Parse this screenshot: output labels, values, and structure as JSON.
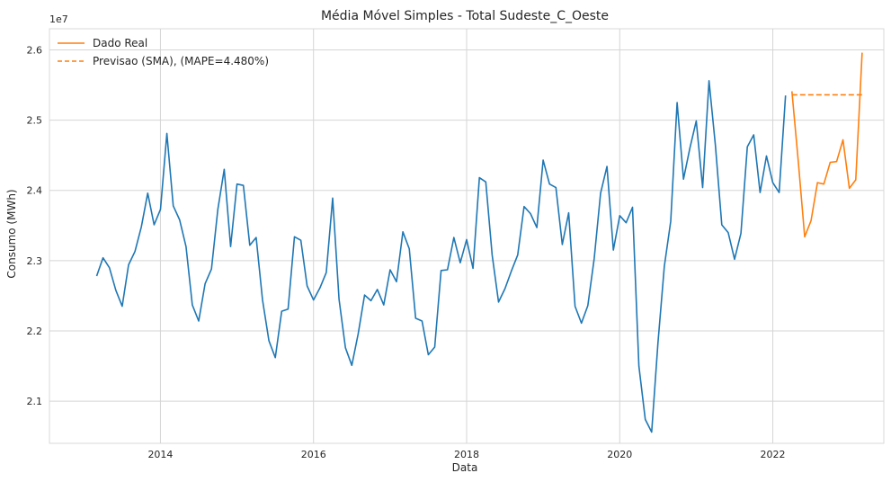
{
  "chart_data": {
    "type": "line",
    "title": "Média Móvel Simples - Total Sudeste_C_Oeste",
    "xlabel": "Data",
    "ylabel": "Consumo (MWh)",
    "y_offset_label": "1e7",
    "grid": true,
    "legend_placement": "top-left",
    "xlim": [
      2012.55,
      2023.45
    ],
    "ylim": [
      2.04,
      2.63
    ],
    "x_ticks": [
      {
        "value": 2014,
        "label": "2014"
      },
      {
        "value": 2016,
        "label": "2016"
      },
      {
        "value": 2018,
        "label": "2018"
      },
      {
        "value": 2020,
        "label": "2020"
      },
      {
        "value": 2022,
        "label": "2022"
      }
    ],
    "y_ticks": [
      {
        "value": 2.1,
        "label": "2.1"
      },
      {
        "value": 2.2,
        "label": "2.2"
      },
      {
        "value": 2.3,
        "label": "2.3"
      },
      {
        "value": 2.4,
        "label": "2.4"
      },
      {
        "value": 2.5,
        "label": "2.5"
      },
      {
        "value": 2.6,
        "label": "2.6"
      }
    ],
    "series": [
      {
        "name": "history",
        "color": "#1f77b4",
        "style": "solid",
        "x_start": 2013.167,
        "x_step": 0.08333,
        "values": [
          2.278,
          2.304,
          2.29,
          2.258,
          2.235,
          2.294,
          2.313,
          2.348,
          2.396,
          2.351,
          2.373,
          2.481,
          2.378,
          2.358,
          2.32,
          2.237,
          2.214,
          2.267,
          2.288,
          2.373,
          2.43,
          2.32,
          2.409,
          2.407,
          2.322,
          2.333,
          2.244,
          2.186,
          2.162,
          2.228,
          2.231,
          2.334,
          2.329,
          2.264,
          2.244,
          2.261,
          2.283,
          2.389,
          2.245,
          2.176,
          2.151,
          2.196,
          2.251,
          2.243,
          2.259,
          2.237,
          2.287,
          2.27,
          2.341,
          2.317,
          2.218,
          2.214,
          2.166,
          2.177,
          2.286,
          2.287,
          2.333,
          2.297,
          2.33,
          2.289,
          2.418,
          2.412,
          2.308,
          2.241,
          2.26,
          2.285,
          2.308,
          2.377,
          2.367,
          2.347,
          2.443,
          2.409,
          2.404,
          2.323,
          2.368,
          2.235,
          2.211,
          2.236,
          2.303,
          2.396,
          2.434,
          2.315,
          2.364,
          2.354,
          2.376,
          2.15,
          2.074,
          2.056,
          2.183,
          2.292,
          2.356,
          2.525,
          2.416,
          2.46,
          2.499,
          2.404,
          2.556,
          2.464,
          2.351,
          2.34,
          2.302,
          2.339,
          2.462,
          2.479,
          2.397,
          2.449,
          2.411,
          2.397,
          2.535
        ]
      },
      {
        "name": "Dado Real",
        "color": "#ff7f0e",
        "style": "solid",
        "x_start": 2022.25,
        "x_step": 0.08333,
        "values": [
          2.541,
          2.441,
          2.334,
          2.357,
          2.411,
          2.409,
          2.44,
          2.441,
          2.472,
          2.403,
          2.415,
          2.596
        ]
      },
      {
        "name": "Previsao (SMA), (MAPE=4.480%)",
        "color": "#ff7f0e",
        "style": "dashed",
        "x_start": 2022.25,
        "x_step": 0.08333,
        "values": [
          2.536,
          2.536,
          2.536,
          2.536,
          2.536,
          2.536,
          2.536,
          2.536,
          2.536,
          2.536,
          2.536,
          2.536
        ]
      }
    ],
    "legend": [
      {
        "label": "Dado Real",
        "color": "#ff7f0e",
        "style": "solid"
      },
      {
        "label": "Previsao (SMA), (MAPE=4.480%)",
        "color": "#ff7f0e",
        "style": "dashed"
      }
    ]
  }
}
